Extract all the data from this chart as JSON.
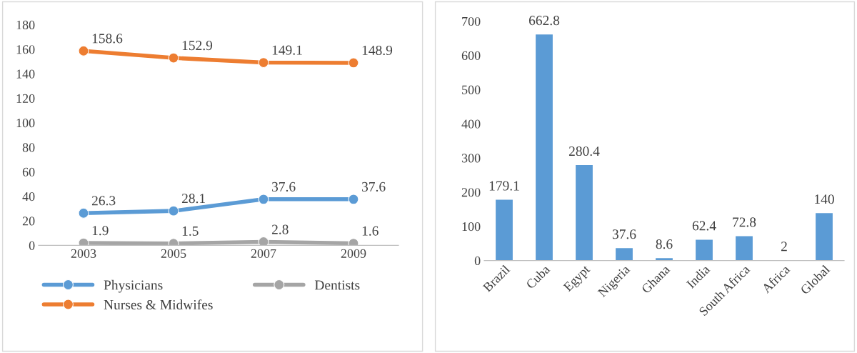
{
  "chart_data": [
    {
      "type": "line",
      "categories": [
        "2003",
        "2005",
        "2007",
        "2009"
      ],
      "ylim": [
        0,
        180
      ],
      "yticks": [
        0,
        20,
        40,
        60,
        80,
        100,
        120,
        140,
        160,
        180
      ],
      "grid": false,
      "legend": "bottom",
      "marker": "circle",
      "line_style": "solid",
      "data_labels": true,
      "series": [
        {
          "name": "Physicians",
          "color": "#5b9bd5",
          "values": [
            26.3,
            28.1,
            37.6,
            37.6
          ]
        },
        {
          "name": "Nurses & Midwifes",
          "color": "#ed7d31",
          "values": [
            158.6,
            152.9,
            149.1,
            148.9
          ]
        },
        {
          "name": "Dentists",
          "color": "#a5a5a5",
          "values": [
            1.9,
            1.5,
            2.8,
            1.6
          ]
        }
      ]
    },
    {
      "type": "bar",
      "categories": [
        "Brazil",
        "Cuba",
        "Egypt",
        "Nigeria",
        "Ghana",
        "India",
        "South Africa",
        "Africa",
        "Global"
      ],
      "values": [
        179.1,
        662.8,
        280.4,
        37.6,
        8.6,
        62.4,
        72.8,
        2,
        140
      ],
      "color": "#5b9bd5",
      "ylim": [
        0,
        700
      ],
      "yticks": [
        0,
        100,
        200,
        300,
        400,
        500,
        600,
        700
      ],
      "grid": false,
      "data_labels": true
    }
  ]
}
